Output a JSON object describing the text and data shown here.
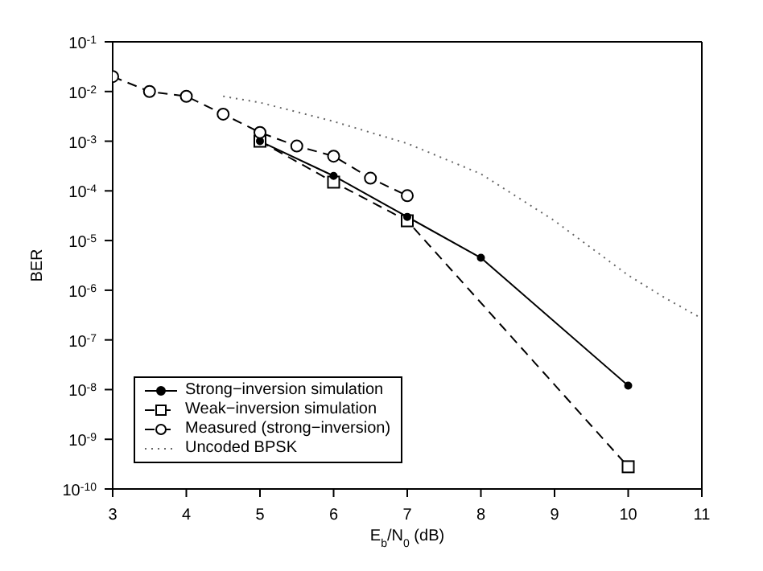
{
  "chart_data": {
    "type": "line",
    "xlabel": "E$_{b}$/N$_{0}$ (dB)",
    "ylabel": "BER",
    "log": "y",
    "grid": false,
    "legend": "bottom left",
    "xlim": [
      3,
      11
    ],
    "xticks": [
      3,
      4,
      5,
      6,
      7,
      8,
      9,
      10,
      11
    ],
    "ylim": [
      1e-10,
      0.1
    ],
    "yticks": [
      {
        "value": 1e-10,
        "label": "10$^{-10}$"
      },
      {
        "value": 1e-09,
        "label": "10$^{-9}$"
      },
      {
        "value": 1e-08,
        "label": "10$^{-8}$"
      },
      {
        "value": 1e-07,
        "label": "10$^{-7}$"
      },
      {
        "value": 1e-06,
        "label": "10$^{-6}$"
      },
      {
        "value": 1e-05,
        "label": "10$^{-5}$"
      },
      {
        "value": 0.0001,
        "label": "10$^{-4}$"
      },
      {
        "value": 0.001,
        "label": "10$^{-3}$"
      },
      {
        "value": 0.01,
        "label": "10$^{-2}$"
      },
      {
        "value": 0.1,
        "label": "10$^{-1}$"
      }
    ],
    "series": [
      {
        "name": "Strong−inversion simulation",
        "color": "#000000",
        "marker": "circle",
        "line_style": "solid",
        "x": [
          5,
          6,
          7,
          8,
          10
        ],
        "values": [
          0.001,
          0.0002,
          3e-05,
          4.5e-06,
          1.2e-08
        ]
      },
      {
        "name": "Weak−inversion simulation",
        "color": "#000000",
        "marker": "square",
        "line_style": "dashed",
        "x": [
          5,
          6,
          7,
          10
        ],
        "values": [
          0.001,
          0.00015,
          2.5e-05,
          2.8e-10
        ]
      },
      {
        "name": "Measured (strong−inversion)",
        "color": "#000000",
        "marker": "circle",
        "line_style": "dashed",
        "x": [
          3,
          3.5,
          4,
          4.5,
          5,
          5.5,
          6,
          6.5,
          7
        ],
        "values": [
          0.02,
          0.01,
          0.008,
          0.0035,
          0.0015,
          0.0008,
          0.0005,
          0.00018,
          8e-05
        ]
      },
      {
        "name": "Uncoded BPSK",
        "color": "#666666",
        "marker": "none",
        "line_style": "dotted",
        "x": [
          4.5,
          5,
          6,
          7,
          8,
          9,
          10,
          10.5,
          11
        ],
        "values": [
          0.008,
          0.006,
          0.0025,
          0.0009,
          0.00022,
          2.5e-05,
          2e-06,
          7e-07,
          2.7e-07
        ]
      }
    ]
  }
}
